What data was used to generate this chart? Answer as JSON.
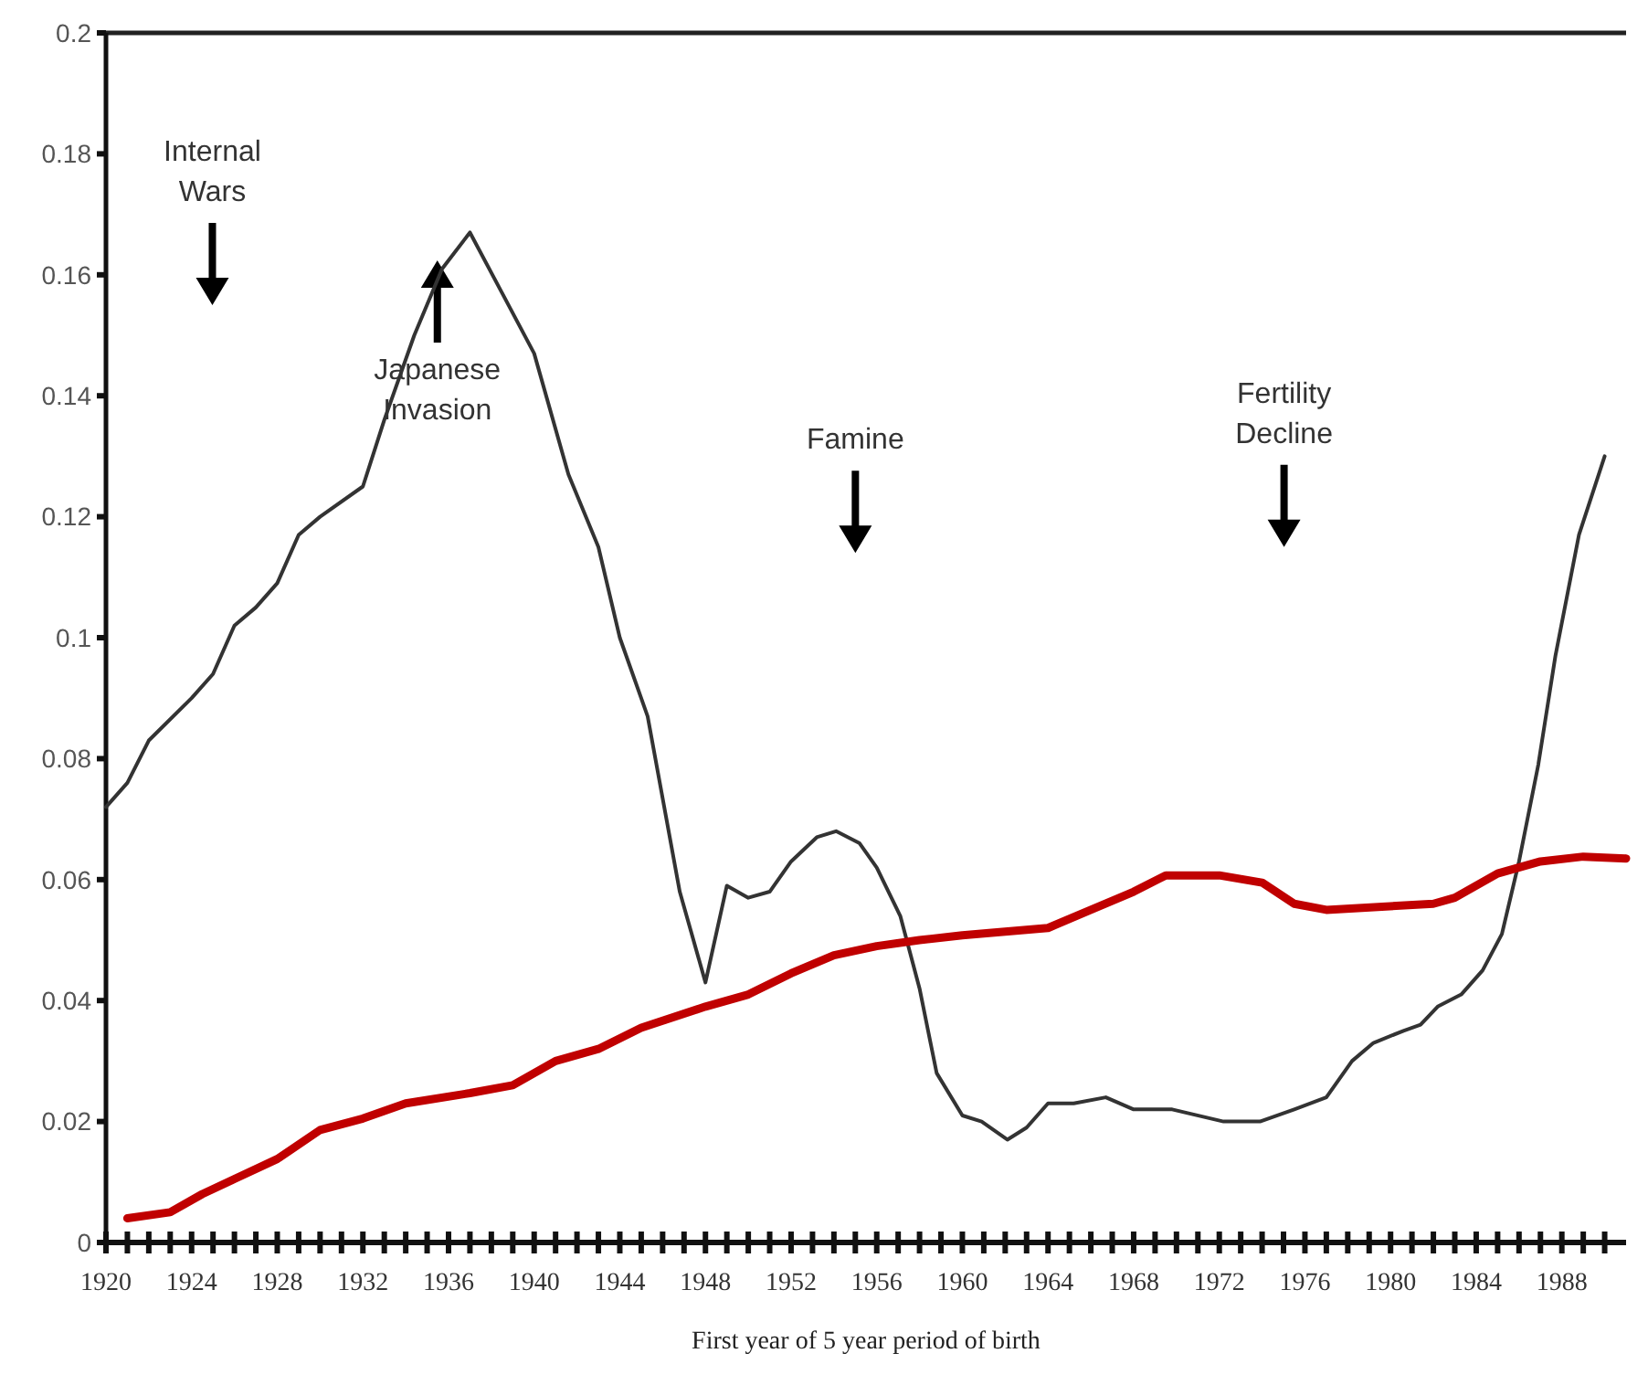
{
  "chart_data": {
    "type": "line",
    "xlabel": "First year of 5 year period of birth",
    "x": [
      1920,
      1921,
      1922,
      1924,
      1925,
      1926,
      1927,
      1928,
      1929,
      1930,
      1932,
      1933,
      1934.4,
      1935.7,
      1937,
      1938.5,
      1940,
      1941.6,
      1943,
      1944,
      1945.3,
      1946.8,
      1948,
      1949,
      1950,
      1951,
      1952,
      1953.2,
      1954.1,
      1955.2,
      1956,
      1957.1,
      1958,
      1958.8,
      1960,
      1960.9,
      1962.1,
      1963,
      1964,
      1965.2,
      1966.7,
      1968,
      1969.8,
      1972.2,
      1973.9,
      1975.5,
      1977,
      1978.2,
      1979.2,
      1980.6,
      1981.4,
      1982.2,
      1983.3,
      1984.3,
      1985.2,
      1986,
      1986.9,
      1987.7,
      1988.8,
      1990
    ],
    "series": [
      {
        "color": "#333333",
        "values": [
          0.072,
          0.076,
          0.083,
          0.09,
          0.094,
          0.102,
          0.105,
          0.109,
          0.117,
          0.12,
          0.125,
          0.136,
          0.15,
          0.161,
          0.167,
          0.157,
          0.147,
          0.127,
          0.115,
          0.1,
          0.087,
          0.058,
          0.043,
          0.059,
          0.057,
          0.058,
          0.063,
          0.067,
          0.068,
          0.066,
          0.062,
          0.054,
          0.042,
          0.028,
          0.021,
          0.02,
          0.017,
          0.019,
          0.023,
          0.023,
          0.024,
          0.022,
          0.022,
          0.02,
          0.02,
          0.022,
          0.024,
          0.03,
          0.033,
          0.035,
          0.036,
          0.039,
          0.041,
          0.045,
          0.051,
          0.063,
          0.079,
          0.097,
          0.117,
          0.13
        ]
      },
      {
        "color": "#c00000",
        "x": [
          1921,
          1923,
          1924.5,
          1926,
          1928,
          1930,
          1932,
          1934,
          1937,
          1939,
          1941,
          1943,
          1945,
          1948,
          1950,
          1952,
          1954,
          1956,
          1958,
          1960,
          1964,
          1966,
          1968,
          1969.5,
          1972,
          1974,
          1975.5,
          1977,
          1982,
          1983,
          1985,
          1987,
          1989,
          1991
        ],
        "values": [
          0.004,
          0.005,
          0.008,
          0.0105,
          0.0138,
          0.0186,
          0.0205,
          0.023,
          0.0247,
          0.026,
          0.03,
          0.032,
          0.0355,
          0.039,
          0.041,
          0.0445,
          0.0475,
          0.049,
          0.05,
          0.0508,
          0.052,
          0.055,
          0.058,
          0.0607,
          0.0607,
          0.0595,
          0.056,
          0.055,
          0.056,
          0.057,
          0.061,
          0.063,
          0.0638,
          0.0635
        ]
      }
    ],
    "xlim": [
      1920,
      1991
    ],
    "xticks": [
      1920,
      {
        "value": 1921,
        "label": null
      },
      {
        "value": 1922,
        "label": null
      },
      {
        "value": 1923,
        "label": null
      },
      1924,
      {
        "value": 1925,
        "label": null
      },
      {
        "value": 1926,
        "label": null
      },
      {
        "value": 1927,
        "label": null
      },
      1928,
      {
        "value": 1929,
        "label": null
      },
      {
        "value": 1930,
        "label": null
      },
      {
        "value": 1931,
        "label": null
      },
      1932,
      {
        "value": 1933,
        "label": null
      },
      {
        "value": 1934,
        "label": null
      },
      {
        "value": 1935,
        "label": null
      },
      1936,
      {
        "value": 1937,
        "label": null
      },
      {
        "value": 1938,
        "label": null
      },
      {
        "value": 1939,
        "label": null
      },
      1940,
      {
        "value": 1941,
        "label": null
      },
      {
        "value": 1942,
        "label": null
      },
      {
        "value": 1943,
        "label": null
      },
      1944,
      {
        "value": 1945,
        "label": null
      },
      {
        "value": 1946,
        "label": null
      },
      {
        "value": 1947,
        "label": null
      },
      1948,
      {
        "value": 1949,
        "label": null
      },
      {
        "value": 1950,
        "label": null
      },
      {
        "value": 1951,
        "label": null
      },
      1952,
      {
        "value": 1953,
        "label": null
      },
      {
        "value": 1954,
        "label": null
      },
      {
        "value": 1955,
        "label": null
      },
      1956,
      {
        "value": 1957,
        "label": null
      },
      {
        "value": 1958,
        "label": null
      },
      {
        "value": 1959,
        "label": null
      },
      1960,
      {
        "value": 1961,
        "label": null
      },
      {
        "value": 1962,
        "label": null
      },
      {
        "value": 1963,
        "label": null
      },
      1964,
      {
        "value": 1965,
        "label": null
      },
      {
        "value": 1966,
        "label": null
      },
      {
        "value": 1967,
        "label": null
      },
      1968,
      {
        "value": 1969,
        "label": null
      },
      {
        "value": 1970,
        "label": null
      },
      {
        "value": 1971,
        "label": null
      },
      1972,
      {
        "value": 1973,
        "label": null
      },
      {
        "value": 1974,
        "label": null
      },
      {
        "value": 1975,
        "label": null
      },
      1976,
      {
        "value": 1977,
        "label": null
      },
      {
        "value": 1978,
        "label": null
      },
      {
        "value": 1979,
        "label": null
      },
      1980,
      {
        "value": 1981,
        "label": null
      },
      {
        "value": 1982,
        "label": null
      },
      {
        "value": 1983,
        "label": null
      },
      1984,
      {
        "value": 1985,
        "label": null
      },
      {
        "value": 1986,
        "label": null
      },
      {
        "value": 1987,
        "label": null
      },
      1988,
      {
        "value": 1989,
        "label": null
      },
      {
        "value": 1990,
        "label": null
      }
    ],
    "ylim": [
      0,
      0.2
    ],
    "yticks": [
      0,
      0.02,
      0.04,
      0.06,
      0.08,
      0.1,
      0.12,
      0.14,
      0.16,
      0.18,
      0.2
    ],
    "annotations": [
      "Internal Wars",
      "Japanese Invasion",
      "Famine",
      "Fertility Decline"
    ],
    "grid": false,
    "marker": "none",
    "line_style": "solid"
  }
}
